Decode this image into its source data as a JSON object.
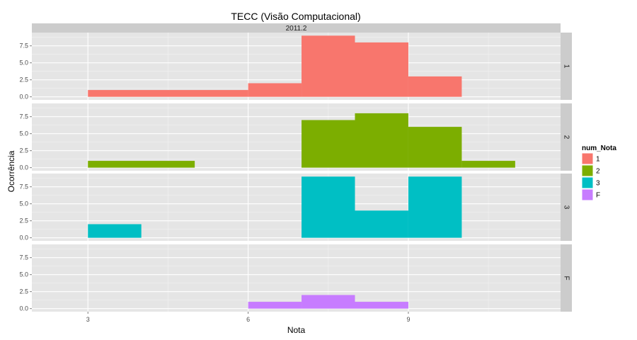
{
  "chart_data": {
    "type": "bar",
    "title": "TECC (Visão Computacional)",
    "top_strip": "2011.2",
    "xlabel": "Nota",
    "ylabel": "Ocorrência",
    "xlim": [
      1.95,
      11.85
    ],
    "ylim": [
      -0.45,
      9.45
    ],
    "x_ticks": [
      3,
      6,
      9
    ],
    "x_tick_labels": [
      "3",
      "6",
      "9"
    ],
    "y_ticks": [
      0,
      2.5,
      5,
      7.5
    ],
    "y_tick_labels": [
      "0.0",
      "2.5",
      "5.0",
      "7.5"
    ],
    "grid": true,
    "legend": {
      "title": "num_Nota",
      "placement": "right",
      "entries": [
        {
          "label": "1",
          "color": "#F8766D"
        },
        {
          "label": "2",
          "color": "#7CAE00"
        },
        {
          "label": "3",
          "color": "#00BFC4"
        },
        {
          "label": "F",
          "color": "#C77CFF"
        }
      ]
    },
    "panels": [
      {
        "label": "1",
        "color": "#F8766D",
        "bins": [
          {
            "x0": 3,
            "x1": 6,
            "y": 1
          },
          {
            "x0": 6,
            "x1": 7,
            "y": 2
          },
          {
            "x0": 7,
            "x1": 8,
            "y": 9
          },
          {
            "x0": 8,
            "x1": 9,
            "y": 8
          },
          {
            "x0": 9,
            "x1": 10,
            "y": 3
          }
        ]
      },
      {
        "label": "2",
        "color": "#7CAE00",
        "bins": [
          {
            "x0": 3,
            "x1": 5,
            "y": 1
          },
          {
            "x0": 7,
            "x1": 8,
            "y": 7
          },
          {
            "x0": 8,
            "x1": 9,
            "y": 8
          },
          {
            "x0": 9,
            "x1": 10,
            "y": 6
          },
          {
            "x0": 10,
            "x1": 11,
            "y": 1
          }
        ]
      },
      {
        "label": "3",
        "color": "#00BFC4",
        "bins": [
          {
            "x0": 3,
            "x1": 4,
            "y": 2
          },
          {
            "x0": 7,
            "x1": 8,
            "y": 9
          },
          {
            "x0": 8,
            "x1": 9,
            "y": 4
          },
          {
            "x0": 9,
            "x1": 10,
            "y": 9
          }
        ]
      },
      {
        "label": "F",
        "color": "#C77CFF",
        "bins": [
          {
            "x0": 6,
            "x1": 7,
            "y": 1
          },
          {
            "x0": 7,
            "x1": 8,
            "y": 2
          },
          {
            "x0": 8,
            "x1": 9,
            "y": 1
          }
        ]
      }
    ]
  }
}
